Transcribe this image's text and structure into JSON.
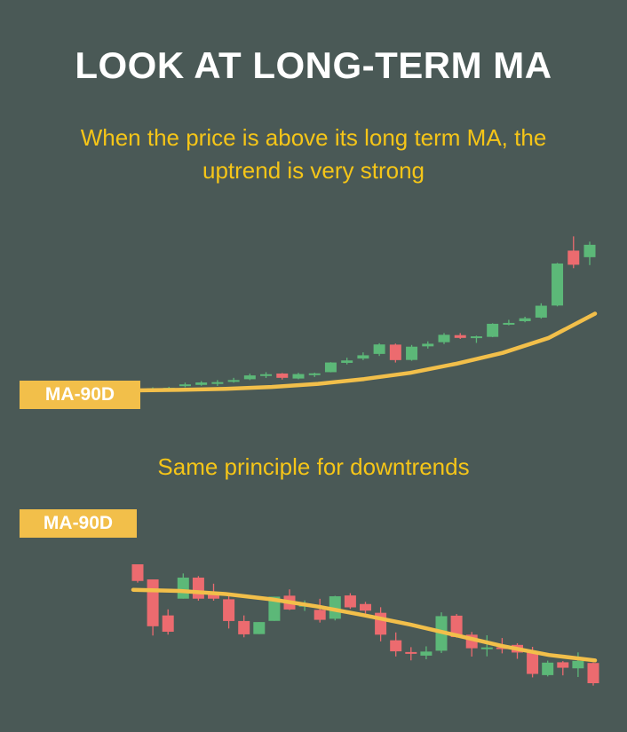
{
  "title": "LOOK AT LONG-TERM MA",
  "subtitle_top": "When the price is above its long term MA, the uptrend is very strong",
  "subtitle_bottom": "Same principle for downtrends",
  "colors": {
    "background": "#4a5956",
    "bull": "#5cb878",
    "bear": "#ec6b6f",
    "ma_line": "#f2bf4a",
    "subtitle": "#f5c518",
    "title": "#ffffff"
  },
  "chart_data": [
    {
      "type": "candlestick",
      "title": "When the price is above its long term MA, the uptrend is very strong",
      "ma_label": "MA-90D",
      "ylim": [
        0,
        100
      ],
      "candles": [
        {
          "o": 0.5,
          "c": 1.3,
          "h": 1.8,
          "l": 0.0
        },
        {
          "o": 1.1,
          "c": 1.5,
          "h": 2.1,
          "l": 0.6
        },
        {
          "o": 2.5,
          "c": 3.5,
          "h": 4.5,
          "l": 1.8
        },
        {
          "o": 3.2,
          "c": 4.6,
          "h": 5.4,
          "l": 2.7
        },
        {
          "o": 4.4,
          "c": 4.8,
          "h": 6.0,
          "l": 2.6
        },
        {
          "o": 5.1,
          "c": 6.0,
          "h": 7.3,
          "l": 4.5
        },
        {
          "o": 6.5,
          "c": 8.7,
          "h": 9.7,
          "l": 6.0
        },
        {
          "o": 9.0,
          "c": 9.4,
          "h": 10.6,
          "l": 7.2
        },
        {
          "o": 9.8,
          "c": 7.3,
          "h": 10.1,
          "l": 6.3
        },
        {
          "o": 6.9,
          "c": 9.5,
          "h": 10.2,
          "l": 6.5
        },
        {
          "o": 9.4,
          "c": 9.9,
          "h": 10.3,
          "l": 7.8
        },
        {
          "o": 10.6,
          "c": 16.2,
          "h": 16.4,
          "l": 10.5
        },
        {
          "o": 16.0,
          "c": 17.4,
          "h": 19.0,
          "l": 15.1
        },
        {
          "o": 18.5,
          "c": 20.4,
          "h": 22.1,
          "l": 17.6
        },
        {
          "o": 21.2,
          "c": 26.7,
          "h": 27.4,
          "l": 20.0
        },
        {
          "o": 26.6,
          "c": 17.6,
          "h": 27.2,
          "l": 16.2
        },
        {
          "o": 17.7,
          "c": 25.4,
          "h": 26.4,
          "l": 17.2
        },
        {
          "o": 25.6,
          "c": 27.1,
          "h": 28.5,
          "l": 24.3
        },
        {
          "o": 28.0,
          "c": 32.3,
          "h": 33.3,
          "l": 26.9
        },
        {
          "o": 32.1,
          "c": 30.5,
          "h": 33.3,
          "l": 29.9
        },
        {
          "o": 30.5,
          "c": 31.4,
          "h": 31.8,
          "l": 27.6
        },
        {
          "o": 31.1,
          "c": 38.7,
          "h": 39.0,
          "l": 30.9
        },
        {
          "o": 38.4,
          "c": 39.2,
          "h": 41.0,
          "l": 37.8
        },
        {
          "o": 40.2,
          "c": 41.9,
          "h": 42.8,
          "l": 39.6
        },
        {
          "o": 42.3,
          "c": 49.2,
          "h": 50.6,
          "l": 41.7
        },
        {
          "o": 49.3,
          "c": 73.7,
          "h": 74.1,
          "l": 48.8
        },
        {
          "o": 81.2,
          "c": 73.0,
          "h": 89.5,
          "l": 71.0
        },
        {
          "o": 77.4,
          "c": 84.6,
          "h": 86.4,
          "l": 72.8
        }
      ],
      "ma": [
        0.0,
        0.3,
        0.9,
        2.0,
        3.8,
        6.6,
        10.2,
        15.5,
        21.8,
        30.5,
        44.6
      ]
    },
    {
      "type": "candlestick",
      "title": "Same principle for downtrends",
      "ma_label": "MA-90D",
      "ylim": [
        0,
        100
      ],
      "candles": [
        {
          "o": 100.0,
          "c": 86.0,
          "h": 100.0,
          "l": 84.6
        },
        {
          "o": 87.3,
          "c": 47.9,
          "h": 87.3,
          "l": 40.1
        },
        {
          "o": 57.0,
          "c": 43.3,
          "h": 62.1,
          "l": 40.9
        },
        {
          "o": 71.1,
          "c": 88.8,
          "h": 92.3,
          "l": 71.1
        },
        {
          "o": 88.8,
          "c": 71.1,
          "h": 90.1,
          "l": 69.4
        },
        {
          "o": 76.1,
          "c": 71.1,
          "h": 83.7,
          "l": 69.4
        },
        {
          "o": 70.6,
          "c": 52.3,
          "h": 74.6,
          "l": 46.0
        },
        {
          "o": 52.3,
          "c": 41.1,
          "h": 57.0,
          "l": 38.6
        },
        {
          "o": 41.3,
          "c": 51.4,
          "h": 51.4,
          "l": 41.3
        },
        {
          "o": 52.4,
          "c": 72.8,
          "h": 72.8,
          "l": 52.4
        },
        {
          "o": 73.6,
          "c": 62.0,
          "h": 78.9,
          "l": 61.5
        },
        {
          "o": 64.5,
          "c": 65.9,
          "h": 69.6,
          "l": 60.8
        },
        {
          "o": 61.7,
          "c": 53.3,
          "h": 71.0,
          "l": 51.0
        },
        {
          "o": 54.2,
          "c": 73.1,
          "h": 73.5,
          "l": 52.8
        },
        {
          "o": 73.8,
          "c": 63.8,
          "h": 75.7,
          "l": 62.5
        },
        {
          "o": 66.6,
          "c": 61.0,
          "h": 68.4,
          "l": 58.6
        },
        {
          "o": 59.2,
          "c": 40.8,
          "h": 63.9,
          "l": 35.2
        },
        {
          "o": 36.1,
          "c": 26.8,
          "h": 42.7,
          "l": 22.5
        },
        {
          "o": 26.2,
          "c": 24.8,
          "h": 30.3,
          "l": 19.2
        },
        {
          "o": 23.2,
          "c": 26.6,
          "h": 31.0,
          "l": 20.1
        },
        {
          "o": 27.3,
          "c": 56.4,
          "h": 59.6,
          "l": 25.4
        },
        {
          "o": 56.8,
          "c": 38.8,
          "h": 58.2,
          "l": 38.3
        },
        {
          "o": 40.8,
          "c": 29.4,
          "h": 43.1,
          "l": 22.4
        },
        {
          "o": 29.4,
          "c": 30.1,
          "h": 40.3,
          "l": 22.6
        },
        {
          "o": 30.2,
          "c": 30.0,
          "h": 38.0,
          "l": 25.1
        },
        {
          "o": 32.2,
          "c": 25.8,
          "h": 33.6,
          "l": 20.5
        },
        {
          "o": 26.2,
          "c": 7.8,
          "h": 30.6,
          "l": 4.9
        },
        {
          "o": 6.8,
          "c": 17.3,
          "h": 19.0,
          "l": 5.7
        },
        {
          "o": 17.6,
          "c": 13.0,
          "h": 18.6,
          "l": 6.6
        },
        {
          "o": 12.5,
          "c": 18.8,
          "h": 25.9,
          "l": 5.2
        },
        {
          "o": 17.0,
          "c": 0.0,
          "h": 17.4,
          "l": -2.0
        }
      ],
      "ma": [
        78.6,
        77.6,
        75.0,
        70.5,
        64.4,
        57.2,
        49.3,
        40.2,
        31.2,
        23.7,
        19.2
      ]
    }
  ]
}
